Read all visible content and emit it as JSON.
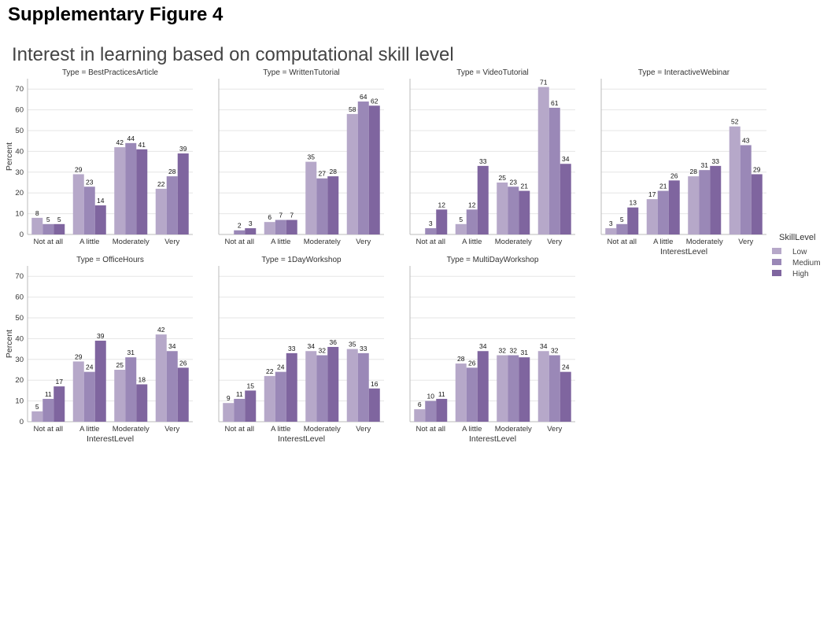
{
  "figure": {
    "heading": "Supplementary Figure 4",
    "subtitle": "Interest in learning based on computational skill level"
  },
  "colors": {
    "Low": "#b6a8c9",
    "Medium": "#9a88b7",
    "High": "#7f659f",
    "grid": "#e6e6e6",
    "axis": "#bbbbbb"
  },
  "chart_data": {
    "type": "bar",
    "xlabel": "InterestLevel",
    "ylabel": "Percent",
    "ylim": [
      0,
      75
    ],
    "yticks": [
      0,
      10,
      20,
      30,
      40,
      50,
      60,
      70
    ],
    "categories": [
      "Not at all",
      "A little",
      "Moderately",
      "Very"
    ],
    "grid": true,
    "legend": {
      "title": "SkillLevel",
      "placement": "right",
      "entries": [
        "Low",
        "Medium",
        "High"
      ]
    },
    "panels": [
      {
        "title": "Type = BestPracticesArticle",
        "series": [
          {
            "name": "Low",
            "values": [
              8,
              29,
              42,
              22
            ]
          },
          {
            "name": "Medium",
            "values": [
              5,
              23,
              44,
              28
            ]
          },
          {
            "name": "High",
            "values": [
              5,
              14,
              41,
              39
            ]
          }
        ]
      },
      {
        "title": "Type = WrittenTutorial",
        "series": [
          {
            "name": "Low",
            "values": [
              null,
              6,
              35,
              58
            ]
          },
          {
            "name": "Medium",
            "values": [
              2,
              7,
              27,
              64
            ]
          },
          {
            "name": "High",
            "values": [
              3,
              7,
              28,
              62
            ]
          }
        ]
      },
      {
        "title": "Type = VideoTutorial",
        "series": [
          {
            "name": "Low",
            "values": [
              null,
              5,
              25,
              71
            ]
          },
          {
            "name": "Medium",
            "values": [
              3,
              12,
              23,
              61
            ]
          },
          {
            "name": "High",
            "values": [
              12,
              33,
              21,
              34
            ]
          }
        ]
      },
      {
        "title": "Type = InteractiveWebinar",
        "series": [
          {
            "name": "Low",
            "values": [
              3,
              17,
              28,
              52
            ]
          },
          {
            "name": "Medium",
            "values": [
              5,
              21,
              31,
              43
            ]
          },
          {
            "name": "High",
            "values": [
              13,
              26,
              33,
              29
            ]
          }
        ]
      },
      {
        "title": "Type = OfficeHours",
        "series": [
          {
            "name": "Low",
            "values": [
              5,
              29,
              25,
              42
            ]
          },
          {
            "name": "Medium",
            "values": [
              11,
              24,
              31,
              34
            ]
          },
          {
            "name": "High",
            "values": [
              17,
              39,
              18,
              26
            ]
          }
        ]
      },
      {
        "title": "Type = 1DayWorkshop",
        "series": [
          {
            "name": "Low",
            "values": [
              9,
              22,
              34,
              35
            ]
          },
          {
            "name": "Medium",
            "values": [
              11,
              24,
              32,
              33
            ]
          },
          {
            "name": "High",
            "values": [
              15,
              33,
              36,
              16
            ]
          }
        ]
      },
      {
        "title": "Type = MultiDayWorkshop",
        "series": [
          {
            "name": "Low",
            "values": [
              6,
              28,
              32,
              34
            ]
          },
          {
            "name": "Medium",
            "values": [
              10,
              26,
              32,
              32
            ]
          },
          {
            "name": "High",
            "values": [
              11,
              34,
              31,
              24
            ]
          }
        ]
      }
    ]
  }
}
